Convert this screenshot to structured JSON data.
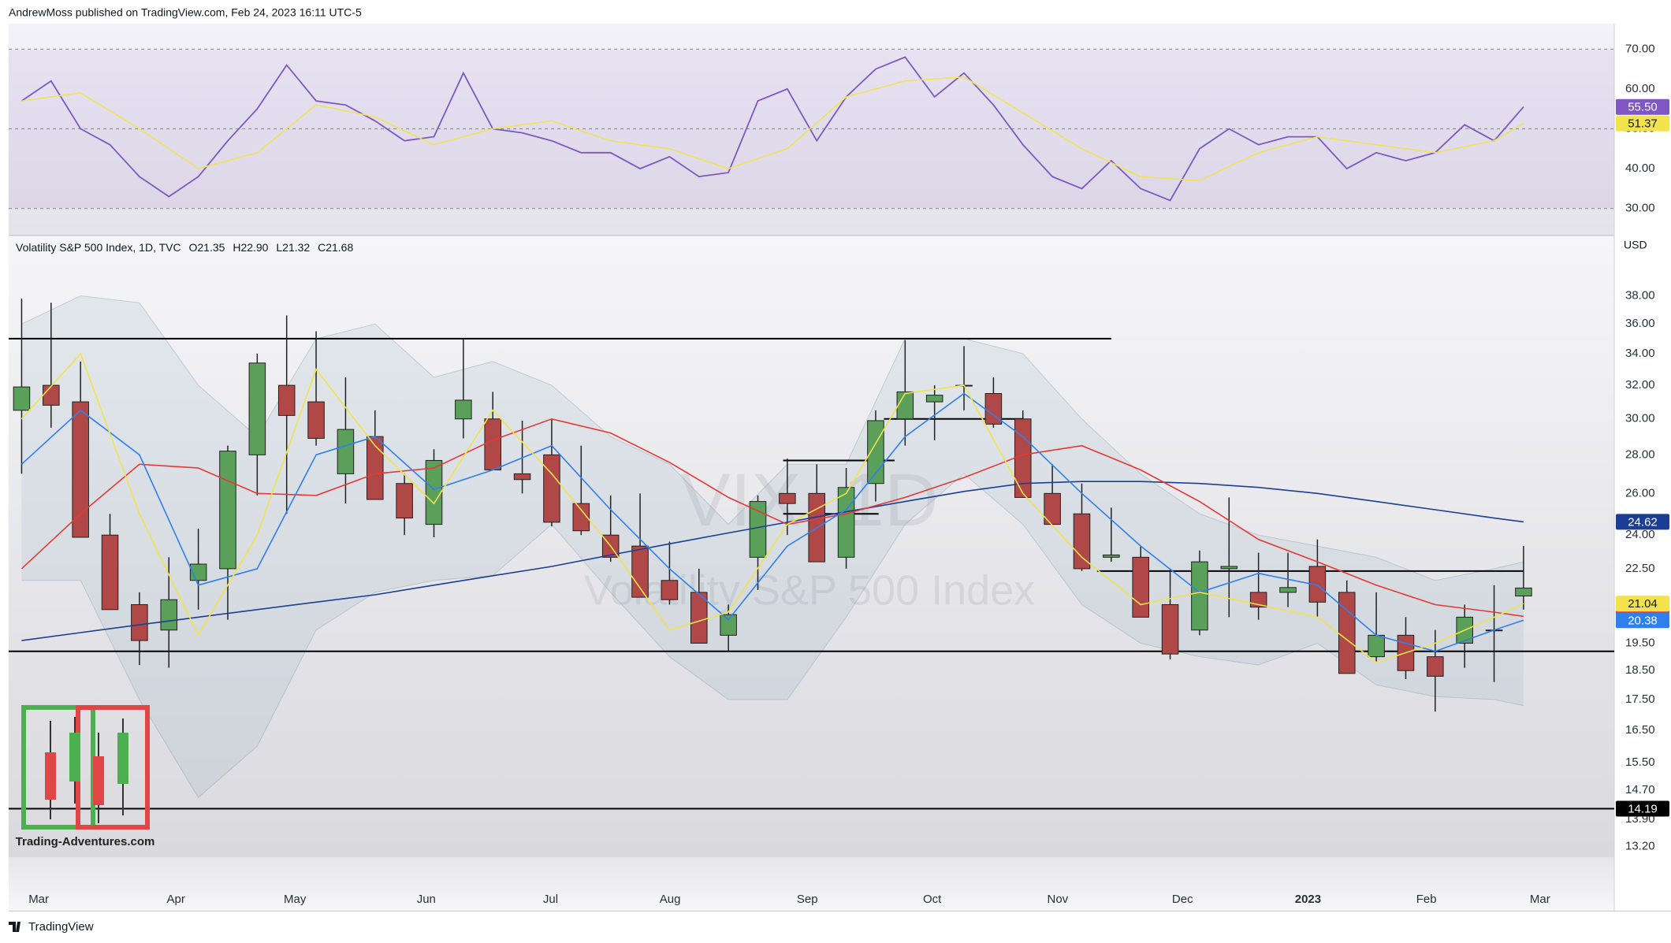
{
  "header": "AndrewMoss published on TradingView.com, Feb 24, 2023 16:11 UTC-5",
  "footer": "TradingView",
  "logo_text": "Trading-Adventures.com",
  "chart_data": [
    {
      "type": "line",
      "ylim": [
        23.6,
        76.4
      ],
      "yticks": [
        {
          "value": 30,
          "label": "30.00"
        },
        {
          "value": 40,
          "label": "40.00"
        },
        {
          "value": 50,
          "label": "50.00"
        },
        {
          "value": 60,
          "label": "60.00"
        },
        {
          "value": 70,
          "label": "70.00"
        }
      ],
      "hlines": [
        70,
        50,
        30
      ],
      "band_color": "#7e57c2",
      "series": [
        {
          "color": "#7e57c2",
          "label": "55.50",
          "values": [
            57,
            62,
            50,
            46,
            38,
            33,
            38,
            47,
            55,
            66,
            57,
            56,
            52,
            47,
            48,
            64,
            50,
            49,
            47,
            44,
            44,
            40,
            43,
            38,
            39,
            57,
            60,
            47,
            58,
            65,
            68,
            58,
            64,
            56,
            46,
            38,
            35,
            42,
            35,
            32,
            45,
            50,
            46,
            48,
            48,
            40,
            44,
            42,
            44,
            51,
            47,
            55.5
          ]
        },
        {
          "color": "#f2e34c",
          "label": "51.37",
          "values": [
            57,
            59,
            50,
            40,
            44,
            56,
            53,
            46,
            50,
            52,
            47,
            45,
            40,
            45,
            58,
            62,
            63,
            54,
            45,
            38,
            37,
            44,
            48,
            46,
            44,
            47,
            51.37
          ]
        }
      ]
    },
    {
      "type": "candlestick",
      "legend": {
        "symbol": "Volatility S&P 500 Index, 1D, TVC",
        "ohlc": [
          "O21.35",
          "H22.90",
          "L21.32",
          "C21.68"
        ]
      },
      "currency": "USD",
      "watermark": [
        "VIX, 1D",
        "Volatility S&P 500 Index"
      ],
      "log": true,
      "xlim": [
        -2.2,
        270.4
      ],
      "ylim": [
        12.93,
        42.6
      ],
      "yticks": [
        {
          "value": 13.2,
          "label": "13.20"
        },
        {
          "value": 13.9,
          "label": "13.90"
        },
        {
          "value": 14.7,
          "label": "14.70"
        },
        {
          "value": 15.5,
          "label": "15.50"
        },
        {
          "value": 16.5,
          "label": "16.50"
        },
        {
          "value": 17.5,
          "label": "17.50"
        },
        {
          "value": 18.5,
          "label": "18.50"
        },
        {
          "value": 19.5,
          "label": "19.50"
        },
        {
          "value": 22.5,
          "label": "22.50"
        },
        {
          "value": 24,
          "label": "24.00"
        },
        {
          "value": 26,
          "label": "26.00"
        },
        {
          "value": 28,
          "label": "28.00"
        },
        {
          "value": 30,
          "label": "30.00"
        },
        {
          "value": 32,
          "label": "32.00"
        },
        {
          "value": 34,
          "label": "34.00"
        },
        {
          "value": 36,
          "label": "36.00"
        },
        {
          "value": 38,
          "label": "38.00"
        }
      ],
      "xticks": [
        {
          "value": 2.9,
          "label": "Mar"
        },
        {
          "value": 26.2,
          "label": "Apr"
        },
        {
          "value": 46.4,
          "label": "May"
        },
        {
          "value": 68.7,
          "label": "Jun"
        },
        {
          "value": 89.8,
          "label": "Jul"
        },
        {
          "value": 110.1,
          "label": "Aug"
        },
        {
          "value": 133.4,
          "label": "Sep"
        },
        {
          "value": 154.6,
          "label": "Oct"
        },
        {
          "value": 175.9,
          "label": "Nov"
        },
        {
          "value": 197.1,
          "label": "Dec"
        },
        {
          "value": 218.4,
          "label": "2023",
          "bold": true
        },
        {
          "value": 238.5,
          "label": "Feb"
        },
        {
          "value": 257.8,
          "label": "Mar"
        }
      ],
      "up_color": "#5aa05a",
      "down_color": "#b04848",
      "x": [
        0,
        5,
        10,
        15,
        20,
        25,
        30,
        35,
        40,
        45,
        50,
        55,
        60,
        65,
        70,
        75,
        80,
        85,
        90,
        95,
        100,
        105,
        110,
        115,
        120,
        125,
        130,
        135,
        140,
        145,
        150,
        155,
        160,
        165,
        170,
        175,
        180,
        185,
        190,
        195,
        200,
        205,
        210,
        215,
        220,
        225,
        230,
        235,
        240,
        245,
        250,
        255
      ],
      "open": [
        30.5,
        32,
        31,
        24,
        21,
        20,
        22,
        22.5,
        28,
        32,
        31,
        27,
        29,
        26.5,
        24.5,
        30,
        30,
        27,
        28,
        25.5,
        24,
        23.5,
        22,
        21.5,
        19.8,
        23,
        26,
        26,
        23,
        26.5,
        30,
        31,
        32,
        31.5,
        30,
        26,
        25,
        23,
        23,
        21,
        20,
        22.5,
        21.5,
        21.5,
        22.6,
        21.5,
        19,
        19.8,
        19,
        19.5,
        20,
        21.35
      ],
      "high": [
        37.8,
        37.5,
        33.5,
        25,
        21.5,
        23,
        24.3,
        28.5,
        34,
        36.6,
        35.5,
        32.5,
        30.5,
        27,
        28.3,
        35,
        31.6,
        29.9,
        30,
        28.5,
        25.9,
        26,
        23.7,
        22.5,
        21,
        25.9,
        27.8,
        27.5,
        27.3,
        30.5,
        34.9,
        32,
        34.5,
        32.5,
        30.5,
        27.5,
        26.5,
        25.3,
        23.5,
        22.5,
        23.3,
        25.8,
        23.2,
        23.2,
        23.8,
        22,
        21.5,
        20.5,
        20,
        21,
        21.8,
        23.5
      ],
      "low": [
        27,
        29.5,
        23.9,
        20.8,
        18.7,
        18.6,
        20.8,
        20.4,
        25.9,
        25,
        28.5,
        25.5,
        25.7,
        24,
        23.9,
        28.9,
        27.2,
        26,
        24.4,
        24,
        22.8,
        21.3,
        21,
        19.5,
        19.2,
        21.6,
        24,
        22.8,
        22.5,
        25.6,
        28.5,
        28.8,
        30.5,
        29.5,
        25.8,
        24.5,
        22.4,
        22.8,
        20.5,
        18.9,
        19.8,
        20.5,
        20.4,
        20.9,
        20.5,
        18.4,
        18.8,
        18.2,
        17.1,
        18.6,
        18.1,
        20.8
      ],
      "close": [
        31.9,
        30.8,
        23.9,
        20.8,
        19.6,
        21.2,
        22.7,
        28.2,
        33.4,
        30.2,
        28.9,
        29.4,
        25.7,
        24.8,
        27.7,
        31.1,
        27.2,
        26.7,
        24.6,
        24.2,
        23,
        21.3,
        21.2,
        19.5,
        20.6,
        25.6,
        25.5,
        22.8,
        26.3,
        29.9,
        31.6,
        31.4,
        32,
        29.7,
        25.8,
        24.5,
        22.5,
        23.1,
        20.5,
        19.1,
        22.8,
        22.6,
        20.9,
        21.7,
        21.1,
        18.4,
        19.8,
        18.5,
        18.3,
        20.5,
        20,
        21.68
      ],
      "overlay_x": [
        0,
        10,
        20,
        30,
        40,
        50,
        60,
        70,
        80,
        90,
        100,
        110,
        120,
        130,
        140,
        150,
        160,
        170,
        180,
        190,
        200,
        210,
        220,
        230,
        240,
        250,
        255
      ],
      "band": {
        "color": "#6f98a8",
        "upper": [
          36,
          38,
          37.5,
          32,
          29,
          35,
          36,
          32.5,
          33.5,
          32,
          29,
          27.5,
          24.5,
          27.5,
          27.5,
          35,
          35,
          34,
          30,
          27,
          25,
          24,
          23.5,
          23,
          22,
          22.5,
          22.8
        ],
        "lower": [
          22,
          22,
          17.5,
          14.5,
          16,
          20,
          21.5,
          22,
          22.2,
          24.5,
          21.5,
          19,
          17.5,
          17.5,
          20.5,
          24.5,
          27,
          24.5,
          21,
          19.5,
          19,
          18.7,
          19.5,
          18,
          17.6,
          17.5,
          17.3
        ]
      },
      "overlays": [
        {
          "color": "#1c3f95",
          "values": [
            19.6,
            19.9,
            20.2,
            20.5,
            20.8,
            21.1,
            21.4,
            21.8,
            22.2,
            22.6,
            23.1,
            23.6,
            24.1,
            24.6,
            25.1,
            25.6,
            26.1,
            26.5,
            26.6,
            26.6,
            26.5,
            26.3,
            26,
            25.6,
            25.2,
            24.8,
            24.62
          ]
        },
        {
          "color": "#e53935",
          "values": [
            22.5,
            25,
            27.5,
            27.3,
            26,
            25.9,
            27,
            27.3,
            28.8,
            30,
            29.2,
            27.6,
            25.8,
            24.5,
            25,
            25.8,
            26.8,
            28,
            28.5,
            27.2,
            25.6,
            23.8,
            22.8,
            21.8,
            21,
            20.7,
            20.53
          ]
        },
        {
          "color": "#2f80ed",
          "values": [
            27.5,
            30.5,
            28,
            21.8,
            22.5,
            28,
            29,
            26.2,
            27.2,
            28.5,
            25.2,
            22.5,
            20.4,
            23.5,
            25.2,
            29,
            31.5,
            29,
            26,
            23.5,
            21.5,
            22.3,
            21.8,
            19.8,
            19.2,
            20,
            20.38
          ]
        },
        {
          "color": "#f2e34c",
          "values": [
            30,
            34,
            25,
            19.8,
            24,
            33,
            28.5,
            25.5,
            30.5,
            27,
            23.5,
            20,
            20.7,
            24.5,
            26,
            31.5,
            32,
            26,
            23,
            21,
            21.5,
            21,
            20.5,
            18.8,
            19.5,
            20.5,
            21.04
          ]
        }
      ],
      "levels": [
        {
          "value": 35,
          "x": [
            -2.2,
            185
          ]
        },
        {
          "value": 19.2
        },
        {
          "value": 14.19,
          "axis_label": true
        },
        {
          "value": 27.7,
          "x": [
            129.3,
            148.2
          ]
        },
        {
          "value": 25,
          "x": [
            129.3,
            145.5
          ]
        },
        {
          "value": 30,
          "x": [
            146.4,
            170
          ]
        },
        {
          "value": 22.4,
          "x": [
            182.6,
            255
          ]
        }
      ]
    }
  ]
}
